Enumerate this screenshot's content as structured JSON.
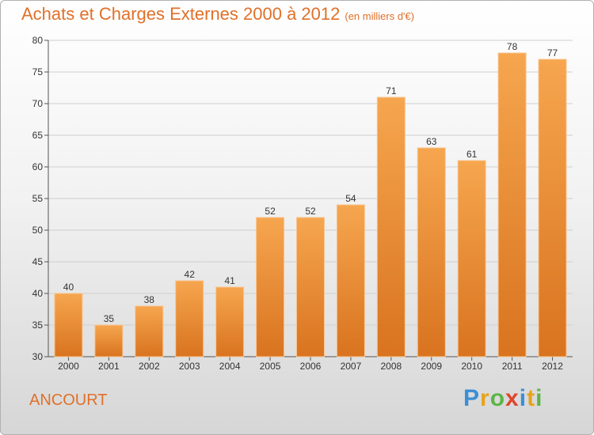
{
  "header": {
    "title": "Achats et Charges Externes 2000 à 2012",
    "subtitle": "(en milliers d'€)"
  },
  "commune": "ANCOURT",
  "logo": {
    "letters": [
      "P",
      "r",
      "o",
      "x",
      "i",
      "t",
      "i"
    ],
    "colors": [
      "#3b8fd6",
      "#e8a21a",
      "#5bb547",
      "#e0442c",
      "#3b8fd6",
      "#e8a21a",
      "#5bb547"
    ]
  },
  "colors": {
    "bar_top": "#f6a64f",
    "bar_bottom": "#d9731f",
    "accent": "#e0702a"
  },
  "chart_data": {
    "type": "bar",
    "title": "Achats et Charges Externes 2000 à 2012",
    "subtitle": "(en milliers d'€)",
    "categories": [
      "2000",
      "2001",
      "2002",
      "2003",
      "2004",
      "2005",
      "2006",
      "2007",
      "2008",
      "2009",
      "2010",
      "2011",
      "2012"
    ],
    "values": [
      40,
      35,
      38,
      42,
      41,
      52,
      52,
      54,
      71,
      63,
      61,
      78,
      77
    ],
    "ylim": [
      30,
      80
    ],
    "yticks": [
      30,
      35,
      40,
      45,
      50,
      55,
      60,
      65,
      70,
      75,
      80
    ],
    "grid": true,
    "legend": "none"
  }
}
